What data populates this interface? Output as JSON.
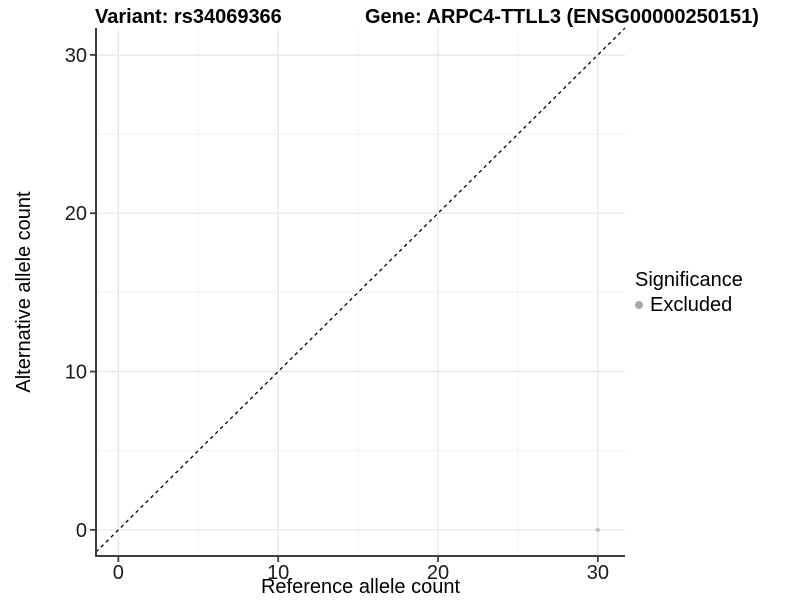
{
  "chart_data": {
    "type": "scatter",
    "title_left": "Variant: rs34069366",
    "title_right": "Gene: ARPC4-TTLL3 (ENSG00000250151)",
    "xlabel": "Reference allele count",
    "ylabel": "Alternative allele count",
    "xlim": [
      -1.4,
      31.7
    ],
    "ylim": [
      -1.65,
      31.7
    ],
    "x_ticks": [
      0,
      10,
      20,
      30
    ],
    "y_ticks": [
      0,
      10,
      20,
      30
    ],
    "x_minor_ticks": [
      5,
      15,
      25
    ],
    "y_minor_ticks": [
      5,
      15,
      25
    ],
    "grid": true,
    "legend_position": "right",
    "series": [
      {
        "name": "Excluded",
        "color": "#c0c0c0",
        "points": [
          [
            30,
            0
          ]
        ]
      }
    ],
    "reference_line": {
      "type": "identity",
      "slope": 1,
      "intercept": 0,
      "style": "dashed",
      "color": "#000000"
    }
  },
  "legend": {
    "title": "Significance",
    "items": [
      {
        "label": "Excluded",
        "color": "#a8a8a8"
      }
    ]
  },
  "colors": {
    "background": "#ffffff",
    "axis_line": "#3d3d3d",
    "tick_label": "#1a1a1a",
    "grid_major": "#e7e7e7",
    "grid_minor": "#f2f2f2"
  }
}
